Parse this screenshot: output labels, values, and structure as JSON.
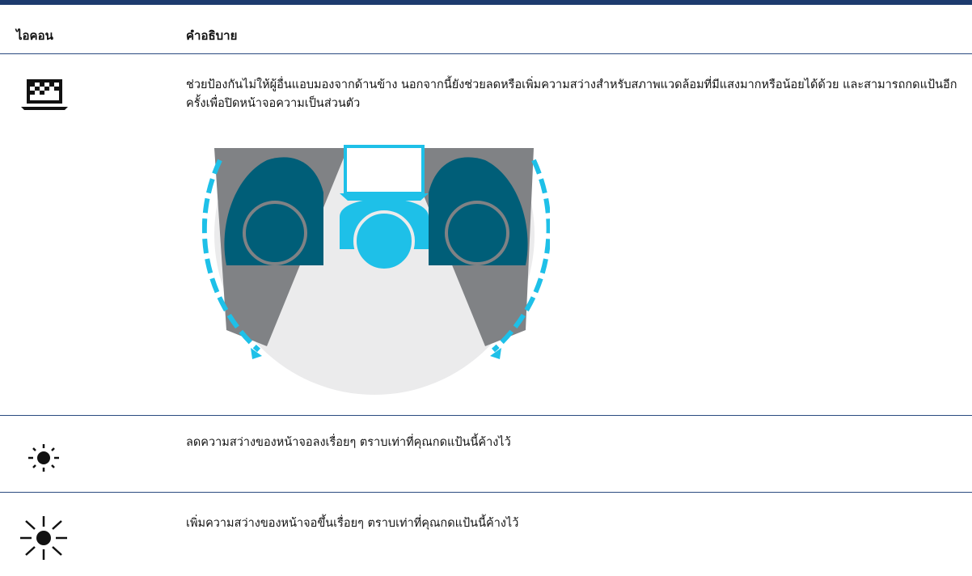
{
  "table": {
    "header": [
      "ไอคอน",
      "คำอธิบาย"
    ],
    "rows": [
      {
        "description": "ช่วยป้องกันไม่ให้ผู้อื่นแอบมองจากด้านข้าง นอกจากนี้ยังช่วยลดหรือเพิ่มความสว่างสำหรับสภาพแวดล้อมที่มีแสงมากหรือน้อยได้ด้วย และสามารถกดแป้นอีกครั้งเพื่อปิดหน้าจอความเป็นส่วนตัว"
      },
      {
        "description": "ลดความสว่างของหน้าจอลงเรื่อยๆ ตราบเท่าที่คุณกดแป้นนี้ค้างไว้"
      },
      {
        "description": "เพิ่มความสว่างของหน้าจอขึ้นเรื่อยๆ ตราบเท่าที่คุณกดแป้นนี้ค้างไว้"
      }
    ]
  }
}
